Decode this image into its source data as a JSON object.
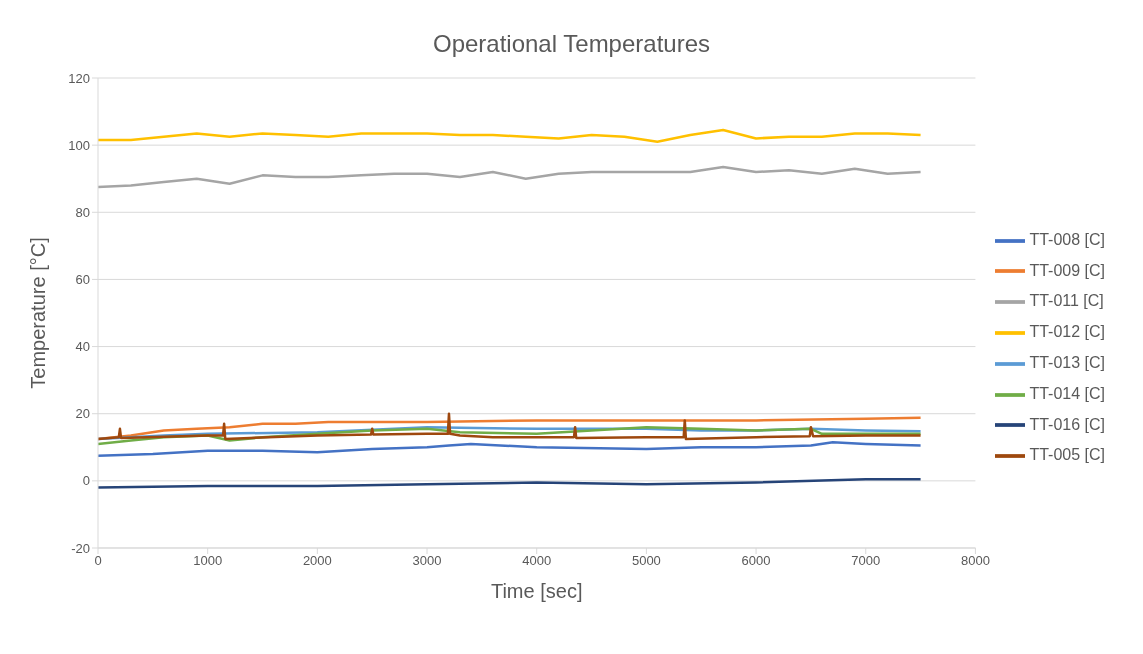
{
  "chart_data": {
    "type": "line",
    "title": "Operational Temperatures",
    "xlabel": "Time [sec]",
    "ylabel": "Temperature [°C]",
    "xlim": [
      0,
      8000
    ],
    "xticks": [
      0,
      1000,
      2000,
      3000,
      4000,
      5000,
      6000,
      7000,
      8000
    ],
    "ylim": [
      -20,
      120
    ],
    "yticks": [
      -20,
      0,
      20,
      40,
      60,
      80,
      100,
      120
    ],
    "grid": "y",
    "legend": "right",
    "marker": "none",
    "line_style": "solid",
    "series": [
      {
        "name": "TT-008 [C]",
        "color": "#4472c4",
        "x": [
          0,
          500,
          1000,
          1500,
          2000,
          2500,
          3000,
          3200,
          3400,
          4000,
          5000,
          5500,
          6000,
          6500,
          6700,
          7000,
          7500
        ],
        "values": [
          7.5,
          8,
          9,
          9,
          8.5,
          9.5,
          10,
          10.5,
          11,
          10,
          9.5,
          10,
          10,
          10.5,
          11.5,
          11,
          10.5
        ]
      },
      {
        "name": "TT-009 [C]",
        "color": "#ed7d31",
        "x": [
          0,
          300,
          600,
          900,
          1200,
          1500,
          1800,
          2100,
          2400,
          3000,
          4000,
          5000,
          6000,
          7000,
          7500
        ],
        "values": [
          12.5,
          13.5,
          15,
          15.5,
          16,
          17,
          17,
          17.5,
          17.5,
          17.5,
          18,
          18,
          18,
          18.5,
          18.8
        ]
      },
      {
        "name": "TT-011 [C]",
        "color": "#a5a5a5",
        "x": [
          0,
          300,
          600,
          900,
          1200,
          1500,
          1800,
          2100,
          2400,
          2700,
          3000,
          3300,
          3600,
          3900,
          4200,
          4500,
          4800,
          5100,
          5400,
          5700,
          6000,
          6300,
          6600,
          6900,
          7200,
          7500
        ],
        "values": [
          87.5,
          88,
          89,
          90,
          88.5,
          91,
          90.5,
          90.5,
          91,
          91.5,
          91.5,
          90.5,
          92,
          90,
          91.5,
          92,
          92,
          92,
          92,
          93.5,
          92,
          92.5,
          91.5,
          93,
          91.5,
          92
        ]
      },
      {
        "name": "TT-012 [C]",
        "color": "#ffc000",
        "x": [
          0,
          300,
          600,
          900,
          1200,
          1500,
          1800,
          2100,
          2400,
          2700,
          3000,
          3300,
          3600,
          3900,
          4200,
          4500,
          4800,
          5100,
          5400,
          5700,
          6000,
          6300,
          6600,
          6900,
          7200,
          7500
        ],
        "values": [
          101.5,
          101.5,
          102.5,
          103.5,
          102.5,
          103.5,
          103,
          102.5,
          103.5,
          103.5,
          103.5,
          103,
          103,
          102.5,
          102,
          103,
          102.5,
          101,
          103,
          104.5,
          102,
          102.5,
          102.5,
          103.5,
          103.5,
          103
        ]
      },
      {
        "name": "TT-013 [C]",
        "color": "#5b9bd5",
        "x": [
          0,
          600,
          1000,
          2000,
          3000,
          4000,
          5000,
          5500,
          6000,
          6500,
          7000,
          7500
        ],
        "values": [
          12.5,
          13.5,
          14,
          14.5,
          16,
          15.5,
          15.5,
          15,
          15,
          15.5,
          15,
          14.8
        ]
      },
      {
        "name": "TT-014 [C]",
        "color": "#70ad47",
        "x": [
          0,
          300,
          600,
          1000,
          1200,
          1500,
          2000,
          2500,
          3000,
          3300,
          4000,
          4500,
          5000,
          5500,
          6000,
          6500,
          6600,
          7000,
          7500
        ],
        "values": [
          11,
          12,
          13,
          13.5,
          12,
          13,
          14,
          15,
          15.5,
          14.5,
          14,
          15,
          16,
          15.5,
          15,
          15.5,
          14,
          14,
          14
        ]
      },
      {
        "name": "TT-016 [C]",
        "color": "#264478",
        "x": [
          0,
          1000,
          2000,
          3000,
          4000,
          5000,
          6000,
          7000,
          7500
        ],
        "values": [
          -2,
          -1.5,
          -1.5,
          -1,
          -0.5,
          -1,
          -0.5,
          0.5,
          0.5
        ]
      },
      {
        "name": "TT-005 [C]",
        "color": "#9e480e",
        "x": [
          0,
          190,
          200,
          210,
          1000,
          1140,
          1150,
          1160,
          2000,
          2490,
          2500,
          2510,
          3000,
          3190,
          3200,
          3210,
          3300,
          3600,
          4000,
          4340,
          4350,
          4360,
          5000,
          5340,
          5350,
          5360,
          6000,
          6490,
          6500,
          6520,
          7000,
          7500
        ],
        "values": [
          12.5,
          13,
          15.5,
          12.8,
          13.5,
          13.5,
          17,
          12.5,
          13.5,
          13.8,
          15.5,
          13.8,
          14,
          14,
          20,
          14,
          13.5,
          13,
          13,
          13,
          16,
          12.8,
          13,
          13,
          18,
          12.5,
          13,
          13.3,
          16,
          13.3,
          13.5,
          13.5
        ]
      }
    ]
  }
}
